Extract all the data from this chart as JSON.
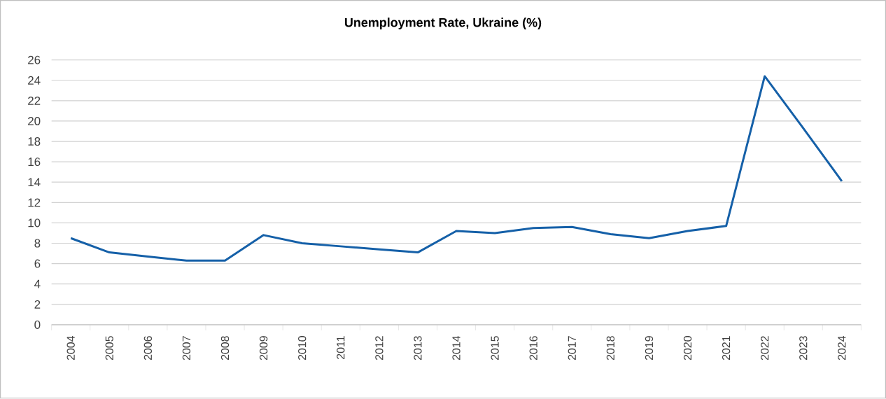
{
  "chart_data": {
    "type": "line",
    "title": "Unemployment Rate, Ukraine (%)",
    "categories": [
      "2004",
      "2005",
      "2006",
      "2007",
      "2008",
      "2009",
      "2010",
      "2011",
      "2012",
      "2013",
      "2014",
      "2015",
      "2016",
      "2017",
      "2018",
      "2019",
      "2020",
      "2021",
      "2022",
      "2023",
      "2024"
    ],
    "values": [
      8.5,
      7.1,
      6.7,
      6.3,
      6.3,
      8.8,
      8.0,
      7.7,
      7.4,
      7.1,
      9.2,
      9.0,
      9.5,
      9.6,
      8.9,
      8.5,
      9.2,
      9.7,
      24.4,
      19.3,
      14.1
    ],
    "color": "#1560a8",
    "ylim": [
      0,
      26
    ],
    "yticks": [
      0,
      2,
      4,
      6,
      8,
      10,
      12,
      14,
      16,
      18,
      20,
      22,
      24,
      26
    ],
    "grid": "y",
    "marker": "none",
    "line_style": "solid"
  }
}
